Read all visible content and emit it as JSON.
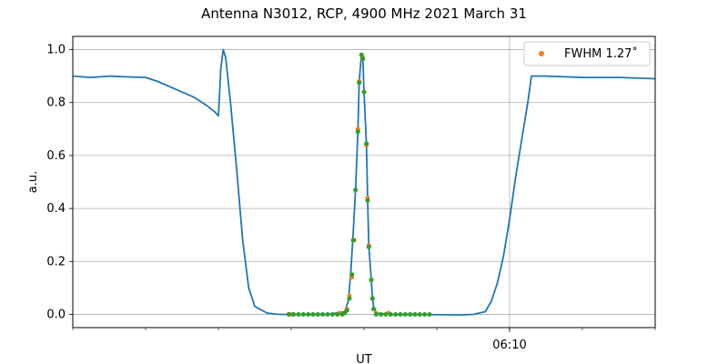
{
  "chart_data": {
    "type": "line",
    "title": "Antenna N3012, RCP, 4900 MHz 2021 March 31",
    "xlabel": "UT",
    "ylabel": "a.u.",
    "xlim": [
      "06:04:00",
      "06:12:00"
    ],
    "ylim": [
      -0.05,
      1.05
    ],
    "x_ticks": [
      {
        "x": "06:10:00",
        "label": "06:10"
      }
    ],
    "y_ticks": [
      0.0,
      0.2,
      0.4,
      0.6,
      0.8,
      1.0
    ],
    "grid": true,
    "legend": {
      "position": "top-right",
      "entries": [
        {
          "label": "FWHM 1.27˚",
          "color": "#ff7f0e",
          "marker": "dot"
        }
      ]
    },
    "series": [
      {
        "color": "#1f77b4",
        "style": "line",
        "points": [
          [
            "06:04:00",
            0.9
          ],
          [
            "06:04:15",
            0.895
          ],
          [
            "06:04:30",
            0.9
          ],
          [
            "06:04:45",
            0.897
          ],
          [
            "06:05:00",
            0.895
          ],
          [
            "06:05:10",
            0.88
          ],
          [
            "06:05:20",
            0.86
          ],
          [
            "06:05:30",
            0.84
          ],
          [
            "06:05:40",
            0.82
          ],
          [
            "06:05:50",
            0.79
          ],
          [
            "06:05:57",
            0.765
          ],
          [
            "06:06:00",
            0.75
          ],
          [
            "06:06:02",
            0.93
          ],
          [
            "06:06:04",
            1.0
          ],
          [
            "06:06:06",
            0.97
          ],
          [
            "06:06:10",
            0.8
          ],
          [
            "06:06:15",
            0.55
          ],
          [
            "06:06:20",
            0.28
          ],
          [
            "06:06:25",
            0.1
          ],
          [
            "06:06:30",
            0.03
          ],
          [
            "06:06:40",
            0.005
          ],
          [
            "06:06:50",
            0.0
          ],
          [
            "06:07:30",
            0.0
          ],
          [
            "06:07:44",
            0.01
          ],
          [
            "06:07:47",
            0.05
          ],
          [
            "06:07:49",
            0.15
          ],
          [
            "06:07:51",
            0.3
          ],
          [
            "06:07:53",
            0.47
          ],
          [
            "06:07:55",
            0.69
          ],
          [
            "06:07:56",
            0.88
          ],
          [
            "06:07:58",
            0.985
          ],
          [
            "06:07:59",
            0.97
          ],
          [
            "06:08:00",
            0.84
          ],
          [
            "06:08:02",
            0.64
          ],
          [
            "06:08:03",
            0.43
          ],
          [
            "06:08:04",
            0.26
          ],
          [
            "06:08:06",
            0.13
          ],
          [
            "06:08:07",
            0.06
          ],
          [
            "06:08:08",
            0.025
          ],
          [
            "06:08:10",
            0.005
          ],
          [
            "06:08:20",
            0.0
          ],
          [
            "06:09:20",
            -0.002
          ],
          [
            "06:09:30",
            0.0
          ],
          [
            "06:09:40",
            0.01
          ],
          [
            "06:09:45",
            0.05
          ],
          [
            "06:09:50",
            0.12
          ],
          [
            "06:09:55",
            0.22
          ],
          [
            "06:10:00",
            0.36
          ],
          [
            "06:10:05",
            0.52
          ],
          [
            "06:10:10",
            0.66
          ],
          [
            "06:10:15",
            0.8
          ],
          [
            "06:10:18",
            0.9
          ],
          [
            "06:10:30",
            0.9
          ],
          [
            "06:11:00",
            0.895
          ],
          [
            "06:11:30",
            0.895
          ],
          [
            "06:12:00",
            0.89
          ]
        ]
      },
      {
        "color": "#ff7f0e",
        "style": "dots",
        "points": [
          [
            "06:07:00",
            0.0
          ],
          [
            "06:07:40",
            0.005
          ],
          [
            "06:07:46",
            0.02
          ],
          [
            "06:07:48",
            0.07
          ],
          [
            "06:07:50",
            0.14
          ],
          [
            "06:07:52",
            0.28
          ],
          [
            "06:07:53",
            0.47
          ],
          [
            "06:07:55",
            0.7
          ],
          [
            "06:07:56",
            0.88
          ],
          [
            "06:07:58",
            0.98
          ],
          [
            "06:07:59",
            0.97
          ],
          [
            "06:08:00",
            0.84
          ],
          [
            "06:08:02",
            0.64
          ],
          [
            "06:08:03",
            0.44
          ],
          [
            "06:08:04",
            0.26
          ],
          [
            "06:08:06",
            0.13
          ],
          [
            "06:08:07",
            0.06
          ],
          [
            "06:08:08",
            0.02
          ],
          [
            "06:08:10",
            0.005
          ],
          [
            "06:08:20",
            0.005
          ]
        ]
      },
      {
        "color": "#2ca02c",
        "style": "dots",
        "points": [
          [
            "06:06:58",
            0.0
          ],
          [
            "06:07:02",
            0.0
          ],
          [
            "06:07:06",
            0.0
          ],
          [
            "06:07:10",
            0.0
          ],
          [
            "06:07:14",
            0.0
          ],
          [
            "06:07:18",
            0.0
          ],
          [
            "06:07:22",
            0.0
          ],
          [
            "06:07:26",
            0.0
          ],
          [
            "06:07:30",
            0.0
          ],
          [
            "06:07:34",
            0.0
          ],
          [
            "06:07:38",
            0.0
          ],
          [
            "06:07:42",
            0.0
          ],
          [
            "06:07:44",
            0.005
          ],
          [
            "06:07:46",
            0.015
          ],
          [
            "06:07:48",
            0.06
          ],
          [
            "06:07:50",
            0.15
          ],
          [
            "06:07:51",
            0.28
          ],
          [
            "06:07:53",
            0.47
          ],
          [
            "06:07:55",
            0.69
          ],
          [
            "06:07:56",
            0.875
          ],
          [
            "06:07:58",
            0.98
          ],
          [
            "06:07:59",
            0.965
          ],
          [
            "06:08:00",
            0.84
          ],
          [
            "06:08:02",
            0.645
          ],
          [
            "06:08:03",
            0.43
          ],
          [
            "06:08:04",
            0.255
          ],
          [
            "06:08:06",
            0.13
          ],
          [
            "06:08:07",
            0.06
          ],
          [
            "06:08:08",
            0.02
          ],
          [
            "06:08:10",
            0.0
          ],
          [
            "06:08:14",
            0.0
          ],
          [
            "06:08:18",
            0.0
          ],
          [
            "06:08:22",
            0.0
          ],
          [
            "06:08:26",
            0.0
          ],
          [
            "06:08:30",
            0.0
          ],
          [
            "06:08:34",
            0.0
          ],
          [
            "06:08:38",
            0.0
          ],
          [
            "06:08:42",
            0.0
          ],
          [
            "06:08:46",
            0.0
          ],
          [
            "06:08:50",
            0.0
          ],
          [
            "06:08:54",
            0.0
          ]
        ]
      }
    ]
  }
}
